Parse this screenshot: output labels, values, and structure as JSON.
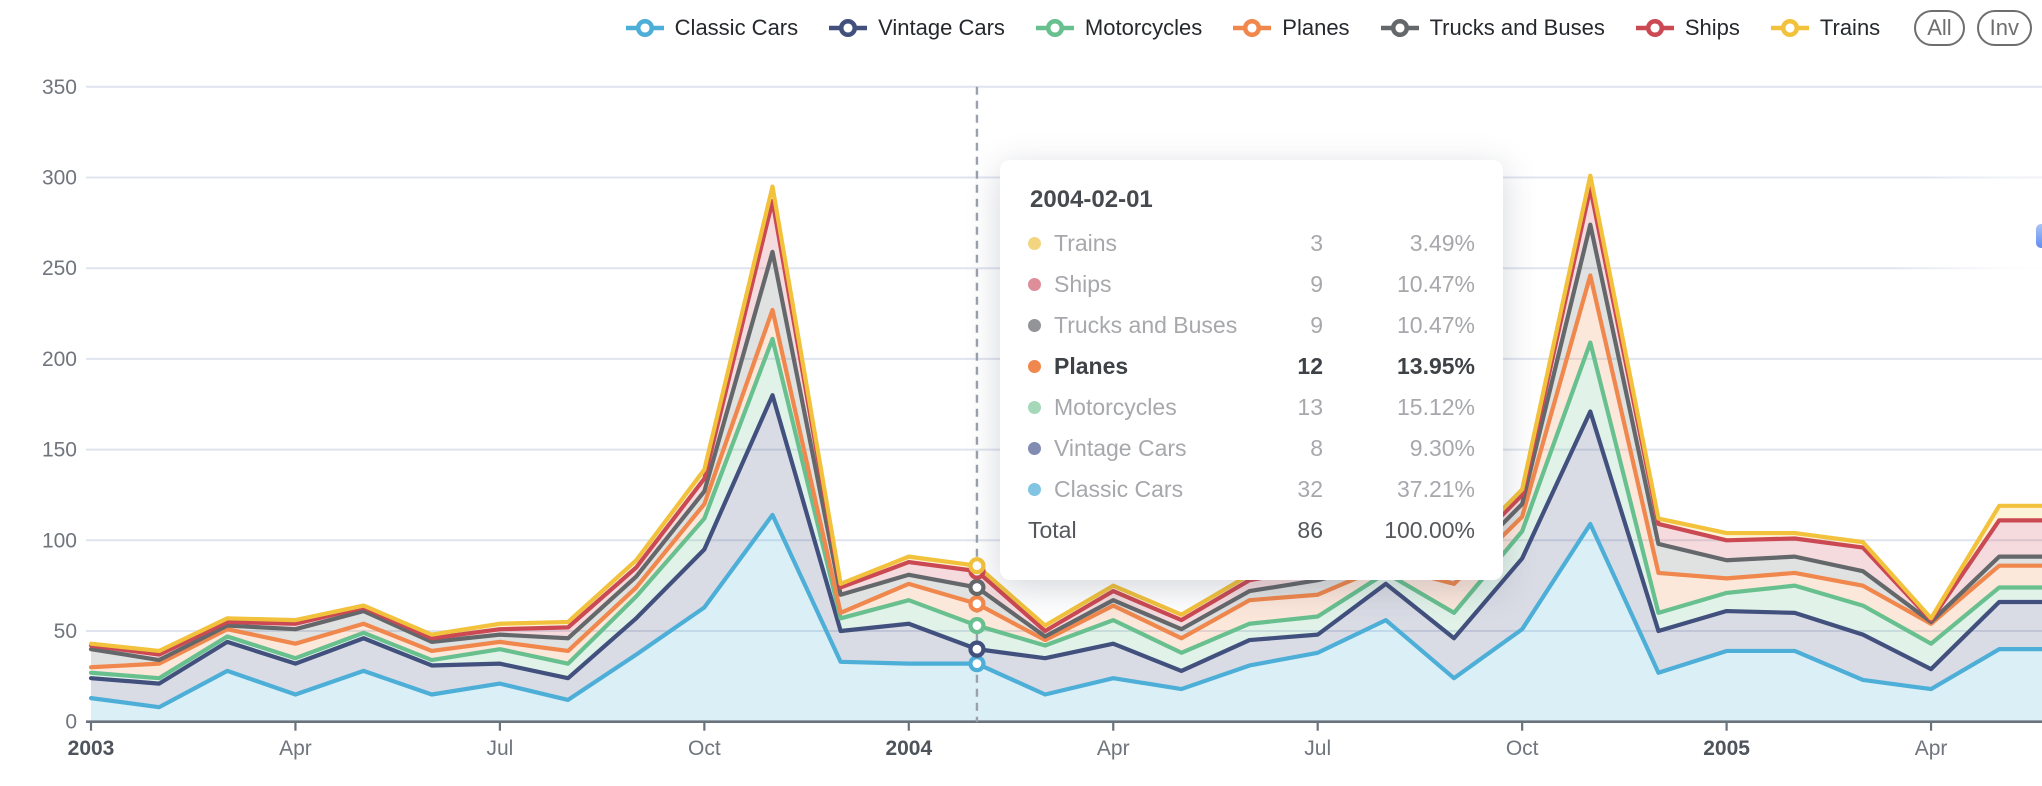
{
  "legend": {
    "items": [
      {
        "label": "Classic Cars",
        "color": "#4DAFD7"
      },
      {
        "label": "Vintage Cars",
        "color": "#42507E"
      },
      {
        "label": "Motorcycles",
        "color": "#68C08F"
      },
      {
        "label": "Planes",
        "color": "#F0874C"
      },
      {
        "label": "Trucks and Buses",
        "color": "#65686B"
      },
      {
        "label": "Ships",
        "color": "#CB4953"
      },
      {
        "label": "Trains",
        "color": "#F2C23C"
      }
    ],
    "buttons": [
      {
        "label": "All"
      },
      {
        "label": "Inv"
      }
    ]
  },
  "chart_data": {
    "type": "area",
    "stacked": true,
    "grid": true,
    "x_axis": {
      "months": [
        "2003-01",
        "2003-02",
        "2003-03",
        "2003-04",
        "2003-05",
        "2003-06",
        "2003-07",
        "2003-08",
        "2003-09",
        "2003-10",
        "2003-11",
        "2003-12",
        "2004-01",
        "2004-02",
        "2004-03",
        "2004-04",
        "2004-05",
        "2004-06",
        "2004-07",
        "2004-08",
        "2004-09",
        "2004-10",
        "2004-11",
        "2004-12",
        "2005-01",
        "2005-02",
        "2005-03",
        "2005-04",
        "2005-05"
      ],
      "tick_month_indices": [
        0,
        3,
        6,
        9,
        12,
        15,
        18,
        21,
        24,
        27
      ],
      "tick_labels": [
        "2003",
        "Apr",
        "Jul",
        "Oct",
        "2004",
        "Apr",
        "Jul",
        "Oct",
        "2005",
        "Apr"
      ],
      "bold_tick_labels": [
        "2003",
        "2004",
        "2005"
      ]
    },
    "y_axis": {
      "min": 0,
      "max": 350,
      "tick_step": 50,
      "tick_labels": [
        0,
        50,
        100,
        150,
        200,
        250,
        300,
        350
      ]
    },
    "series": [
      {
        "name": "Classic Cars",
        "color": "#4DAFD7",
        "values": [
          13,
          8,
          28,
          15,
          28,
          15,
          21,
          12,
          37,
          63,
          114,
          33,
          32,
          32,
          15,
          24,
          18,
          31,
          38,
          56,
          24,
          51,
          109,
          27,
          39,
          39,
          23,
          18,
          40
        ]
      },
      {
        "name": "Vintage Cars",
        "color": "#42507E",
        "values": [
          11,
          13,
          16,
          17,
          18,
          16,
          11,
          12,
          20,
          32,
          66,
          17,
          22,
          8,
          20,
          19,
          10,
          14,
          10,
          20,
          22,
          39,
          62,
          23,
          22,
          21,
          25,
          11,
          26
        ]
      },
      {
        "name": "Motorcycles",
        "color": "#68C08F",
        "values": [
          3,
          3,
          3,
          3,
          3,
          3,
          8,
          8,
          12,
          17,
          31,
          7,
          13,
          13,
          7,
          13,
          10,
          9,
          10,
          6,
          14,
          15,
          38,
          10,
          10,
          15,
          16,
          14,
          8
        ]
      },
      {
        "name": "Planes",
        "color": "#F0874C",
        "values": [
          3,
          8,
          4,
          8,
          5,
          5,
          4,
          7,
          5,
          8,
          16,
          3,
          9,
          12,
          3,
          8,
          8,
          13,
          12,
          4,
          16,
          8,
          37,
          22,
          8,
          7,
          11,
          11,
          12
        ]
      },
      {
        "name": "Trucks and Buses",
        "color": "#65686B",
        "values": [
          10,
          2,
          2,
          8,
          7,
          5,
          4,
          7,
          6,
          7,
          32,
          10,
          5,
          9,
          2,
          3,
          5,
          5,
          8,
          2,
          6,
          7,
          28,
          16,
          10,
          9,
          8,
          1,
          5
        ]
      },
      {
        "name": "Ships",
        "color": "#CB4953",
        "values": [
          2,
          3,
          2,
          3,
          2,
          2,
          3,
          6,
          5,
          7,
          28,
          4,
          7,
          9,
          3,
          5,
          5,
          6,
          7,
          2,
          5,
          5,
          20,
          11,
          11,
          10,
          13,
          1,
          20
        ]
      },
      {
        "name": "Trains",
        "color": "#F2C23C",
        "values": [
          1,
          2,
          2,
          2,
          1,
          2,
          3,
          3,
          4,
          5,
          8,
          2,
          3,
          3,
          3,
          3,
          3,
          3,
          3,
          1,
          3,
          3,
          7,
          3,
          4,
          3,
          3,
          1,
          8
        ]
      }
    ]
  },
  "pointer": {
    "date": "2004-02-01",
    "month_index": 13
  },
  "tooltip": {
    "title": "2004-02-01",
    "rows": [
      {
        "name": "Trains",
        "value": 3,
        "pct": "3.49%",
        "color": "#F3D581",
        "bold": false
      },
      {
        "name": "Ships",
        "value": 9,
        "pct": "10.47%",
        "color": "#DE8E99",
        "bold": false
      },
      {
        "name": "Trucks and Buses",
        "value": 9,
        "pct": "10.47%",
        "color": "#929497",
        "bold": false
      },
      {
        "name": "Planes",
        "value": 12,
        "pct": "13.95%",
        "color": "#F0874C",
        "bold": true
      },
      {
        "name": "Motorcycles",
        "value": 13,
        "pct": "15.12%",
        "color": "#A5D8B8",
        "bold": false
      },
      {
        "name": "Vintage Cars",
        "value": 8,
        "pct": "9.30%",
        "color": "#828CB2",
        "bold": false
      },
      {
        "name": "Classic Cars",
        "value": 32,
        "pct": "37.21%",
        "color": "#82C5E2",
        "bold": false
      }
    ],
    "total": {
      "label": "Total",
      "value": 86,
      "pct": "100.00%"
    }
  },
  "colors": {
    "grid_line": "#E0E4EF",
    "axis_line": "#6A737D",
    "axis_label": "#70757D",
    "axis_label_bold": "#4E545C",
    "pointer_line": "#9AA0AC"
  }
}
